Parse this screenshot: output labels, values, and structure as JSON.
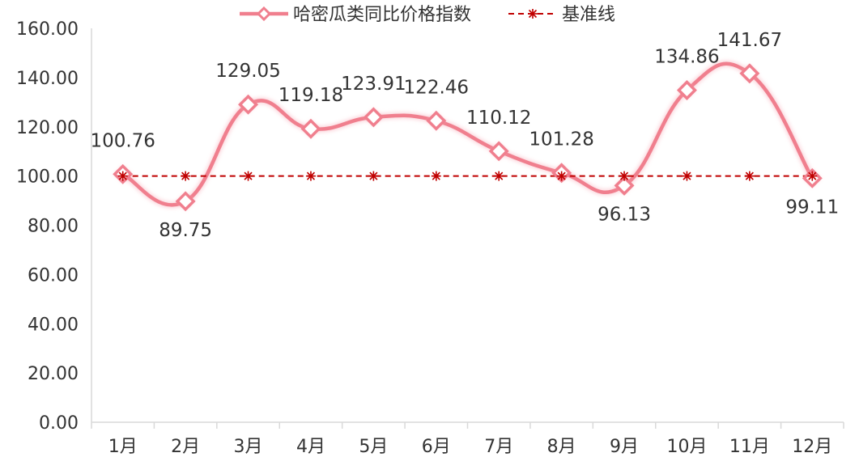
{
  "chart_data": {
    "type": "line",
    "categories": [
      "1月",
      "2月",
      "3月",
      "4月",
      "5月",
      "6月",
      "7月",
      "8月",
      "9月",
      "10月",
      "11月",
      "12月"
    ],
    "series": [
      {
        "name": "哈密瓜类同比价格指数",
        "values": [
          100.76,
          89.75,
          129.05,
          119.18,
          123.91,
          122.46,
          110.12,
          101.28,
          96.13,
          134.86,
          141.67,
          99.11
        ],
        "labels": [
          "100.76",
          "89.75",
          "129.05",
          "119.18",
          "123.91",
          "122.46",
          "110.12",
          "101.28",
          "96.13",
          "134.86",
          "141.67",
          "99.11"
        ],
        "color": "#f07f8e",
        "marker": "diamond",
        "smooth": true
      },
      {
        "name": "基准线",
        "values": [
          100,
          100,
          100,
          100,
          100,
          100,
          100,
          100,
          100,
          100,
          100,
          100
        ],
        "color": "#c00000",
        "marker": "asterisk",
        "dashed": true
      }
    ],
    "ylim": [
      0,
      160
    ],
    "yticks": [
      "0.00",
      "20.00",
      "40.00",
      "60.00",
      "80.00",
      "100.00",
      "120.00",
      "140.00",
      "160.00"
    ],
    "legend_position": "top",
    "grid": false
  }
}
